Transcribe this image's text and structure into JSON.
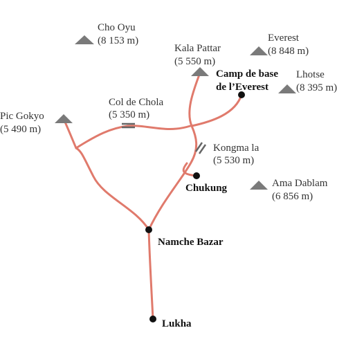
{
  "peaks": [
    {
      "name": "Cho Oyu",
      "elevation": "(8 153 m)"
    },
    {
      "name": "Kala Pattar",
      "elevation": "(5 550 m)"
    },
    {
      "name": "Everest",
      "elevation": "(8 848 m)"
    },
    {
      "name": "Lhotse",
      "elevation": "(8 395 m)"
    },
    {
      "name": "Pic Gokyo",
      "elevation": "(5 490 m)"
    },
    {
      "name": "Ama Dablam",
      "elevation": "(6 856 m)"
    }
  ],
  "passes": [
    {
      "name": "Col de Chola",
      "elevation": "(5 350 m)"
    },
    {
      "name": "Kongma la",
      "elevation": "(5 530 m)"
    }
  ],
  "places": [
    {
      "lines": [
        "Camp de base",
        "de l’Everest"
      ]
    },
    {
      "lines": [
        "Chukung"
      ]
    },
    {
      "lines": [
        "Namche Bazar"
      ]
    },
    {
      "lines": [
        "Lukha"
      ]
    }
  ]
}
